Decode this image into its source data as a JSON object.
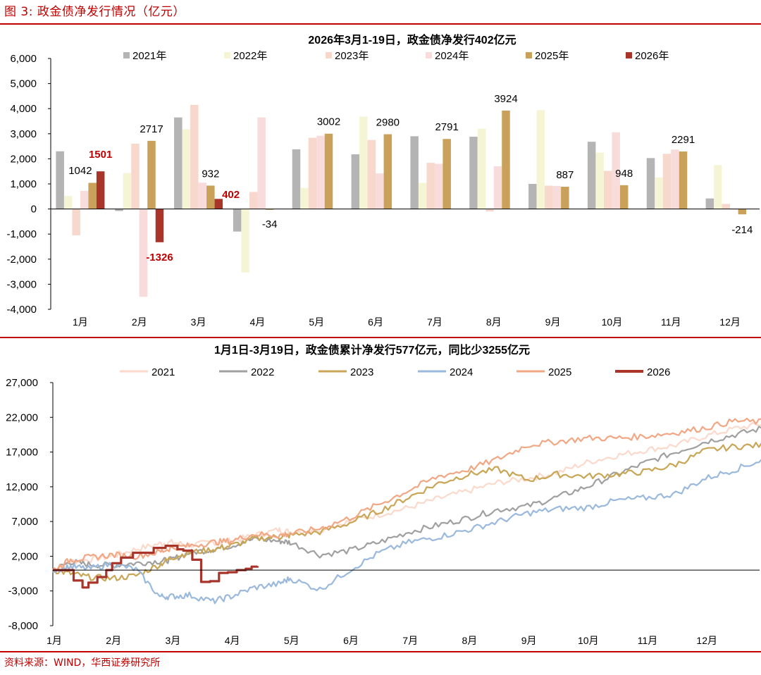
{
  "figure_title": "图 3:  政金债净发行情况（亿元）",
  "source": "资料来源：WIND，华西证券研究所",
  "colors": {
    "2021": "#b4b4b4",
    "2022": "#f5f5d6",
    "2023": "#f8d8cc",
    "2024": "#f8dcdc",
    "2025": "#c9a15a",
    "2026": "#a8342a",
    "line2021": "#fbd9cb",
    "line2022": "#a0a0a0",
    "line2023": "#c9a655",
    "line2024": "#9ab9dc",
    "line2025": "#f2a784",
    "line2026": "#a8342a",
    "accent": "#c00000"
  },
  "chart_data": [
    {
      "type": "bar",
      "title": "2026年3月1-19日，政金债净发行402亿元",
      "categories": [
        "1月",
        "2月",
        "3月",
        "4月",
        "5月",
        "6月",
        "7月",
        "8月",
        "9月",
        "10月",
        "11月",
        "12月"
      ],
      "ylim": [
        -4000,
        6000
      ],
      "yticks": [
        -4000,
        -3000,
        -2000,
        -1000,
        0,
        1000,
        2000,
        3000,
        4000,
        5000,
        6000
      ],
      "ytick_labels": [
        "-4,000",
        "-3,000",
        "-2,000",
        "-1,000",
        "0",
        "1,000",
        "2,000",
        "3,000",
        "4,000",
        "5,000",
        "6,000"
      ],
      "series": [
        {
          "name": "2021年",
          "key": "2021",
          "values": [
            2300,
            -80,
            3650,
            -900,
            2380,
            2180,
            2900,
            2880,
            1000,
            2680,
            2030,
            420
          ]
        },
        {
          "name": "2022年",
          "key": "2022",
          "values": [
            520,
            1430,
            3180,
            -2530,
            840,
            3680,
            1040,
            3200,
            3940,
            2250,
            1260,
            1750
          ]
        },
        {
          "name": "2023年",
          "key": "2023",
          "values": [
            -1050,
            2600,
            4150,
            680,
            2840,
            2750,
            1840,
            -100,
            930,
            1520,
            2200,
            200
          ]
        },
        {
          "name": "2024年",
          "key": "2024",
          "values": [
            720,
            -3500,
            1050,
            3650,
            2920,
            1420,
            1800,
            1700,
            920,
            3060,
            2370,
            0
          ]
        },
        {
          "name": "2025年",
          "key": "2025",
          "values": [
            1042,
            2717,
            932,
            -34,
            3002,
            2980,
            2791,
            3924,
            887,
            948,
            2291,
            -214
          ]
        },
        {
          "name": "2026年",
          "key": "2026",
          "values": [
            1501,
            -1326,
            402,
            null,
            null,
            null,
            null,
            null,
            null,
            null,
            null,
            null
          ]
        }
      ],
      "labels_2025": [
        "1042",
        "2717",
        "932",
        "-34",
        "3002",
        "2980",
        "2791",
        "3924",
        "887",
        "948",
        "2291",
        "-214"
      ],
      "labels_2026": [
        "1501",
        "-1326",
        "402"
      ]
    },
    {
      "type": "line",
      "title": "1月1日-3月19日，政金债累计净发行577亿元，同比少3255亿元",
      "x_tick_labels": [
        "1月",
        "2月",
        "3月",
        "4月",
        "5月",
        "6月",
        "7月",
        "8月",
        "9月",
        "10月",
        "11月",
        "12月"
      ],
      "ylim": [
        -8000,
        27000
      ],
      "yticks": [
        -8000,
        -3000,
        2000,
        7000,
        12000,
        17000,
        22000,
        27000
      ],
      "ytick_labels": [
        "-8,000",
        "-3,000",
        "2,000",
        "7,000",
        "12,000",
        "17,000",
        "22,000",
        "27,000"
      ],
      "x_unit": "month (0 = Jan 1, 12 = Dec 31)",
      "series": [
        {
          "name": "2021",
          "key": "line2021",
          "x": [
            0,
            0.3,
            0.6,
            1,
            1.4,
            1.8,
            2,
            2.3,
            2.7,
            3,
            3.4,
            3.8,
            4,
            4.5,
            5,
            5.5,
            6,
            6.5,
            7,
            7.5,
            8,
            8.5,
            9,
            9.5,
            10,
            10.5,
            11,
            11.5,
            12
          ],
          "y": [
            0,
            1200,
            1500,
            2000,
            3000,
            3800,
            4000,
            3600,
            4000,
            4200,
            5000,
            5800,
            5500,
            5800,
            7000,
            8000,
            9000,
            10300,
            11400,
            12600,
            13200,
            14000,
            15500,
            16500,
            17300,
            18000,
            19300,
            20400,
            21100
          ]
        },
        {
          "name": "2022",
          "key": "line2022",
          "x": [
            0,
            0.3,
            0.6,
            1,
            1.4,
            1.8,
            2,
            2.3,
            2.7,
            3,
            3.4,
            3.8,
            4,
            4.5,
            5,
            5.5,
            6,
            6.5,
            7,
            7.5,
            8,
            8.5,
            9,
            9.5,
            10,
            10.5,
            11,
            11.5,
            12
          ],
          "y": [
            0,
            1200,
            800,
            700,
            1000,
            1300,
            1500,
            2500,
            3000,
            3500,
            4500,
            4200,
            4000,
            2200,
            2800,
            4000,
            5500,
            6500,
            7500,
            8700,
            9200,
            10500,
            12000,
            13800,
            15500,
            17000,
            18500,
            19500,
            20500
          ]
        },
        {
          "name": "2023",
          "key": "line2023",
          "x": [
            0,
            0.3,
            0.6,
            1,
            1.4,
            1.8,
            2,
            2.3,
            2.7,
            3,
            3.4,
            3.8,
            4,
            4.5,
            5,
            5.5,
            6,
            6.5,
            7,
            7.5,
            8,
            8.5,
            9,
            9.5,
            10,
            10.5,
            11,
            11.5,
            12
          ],
          "y": [
            0,
            -500,
            -1000,
            -1200,
            -800,
            800,
            1800,
            2500,
            3000,
            3500,
            4500,
            4800,
            5000,
            5500,
            6800,
            8500,
            10500,
            12500,
            13800,
            14500,
            13000,
            13800,
            13500,
            13800,
            14200,
            15200,
            17200,
            17800,
            18000
          ]
        },
        {
          "name": "2024",
          "key": "line2024",
          "x": [
            0,
            0.3,
            0.6,
            1,
            1.4,
            1.8,
            2,
            2.3,
            2.7,
            3,
            3.4,
            3.8,
            4,
            4.5,
            5,
            5.5,
            6,
            6.5,
            7,
            7.5,
            8,
            8.5,
            9,
            9.5,
            10,
            10.5,
            11,
            11.5,
            12
          ],
          "y": [
            0,
            500,
            200,
            900,
            100,
            -3800,
            -3800,
            -3600,
            -4500,
            -3800,
            -2500,
            -2000,
            -1200,
            -2800,
            0,
            2500,
            4000,
            4800,
            5800,
            7000,
            8200,
            8800,
            9000,
            10000,
            10400,
            11000,
            13200,
            14500,
            16000
          ]
        },
        {
          "name": "2025",
          "key": "line2025",
          "x": [
            0,
            0.3,
            0.6,
            1,
            1.4,
            1.8,
            2,
            2.3,
            2.7,
            3,
            3.4,
            3.8,
            4,
            4.5,
            5,
            5.5,
            6,
            6.5,
            7,
            7.5,
            8,
            8.5,
            9,
            9.5,
            10,
            10.5,
            11,
            11.5,
            12
          ],
          "y": [
            0,
            1500,
            1800,
            2200,
            2000,
            2600,
            3200,
            3500,
            4000,
            4200,
            5200,
            5000,
            5200,
            6000,
            7500,
            9500,
            11500,
            13500,
            14500,
            16000,
            18000,
            18500,
            19000,
            19000,
            19300,
            19800,
            20500,
            21500,
            21300
          ]
        },
        {
          "name": "2026",
          "key": "line2026",
          "x": [
            0,
            0.2,
            0.35,
            0.5,
            0.6,
            0.75,
            0.9,
            1,
            1.15,
            1.35,
            1.5,
            1.7,
            1.9,
            2,
            2.1,
            2.2,
            2.35,
            2.5,
            2.65,
            2.8,
            2.95,
            3.1,
            3.25,
            3.35,
            3.45
          ],
          "y": [
            0,
            0,
            -1500,
            -2500,
            -1800,
            -1000,
            0,
            1000,
            1800,
            2500,
            2500,
            3200,
            3500,
            3500,
            3000,
            2800,
            1500,
            -1700,
            -1600,
            -400,
            -300,
            0,
            200,
            500,
            577
          ]
        }
      ]
    }
  ]
}
